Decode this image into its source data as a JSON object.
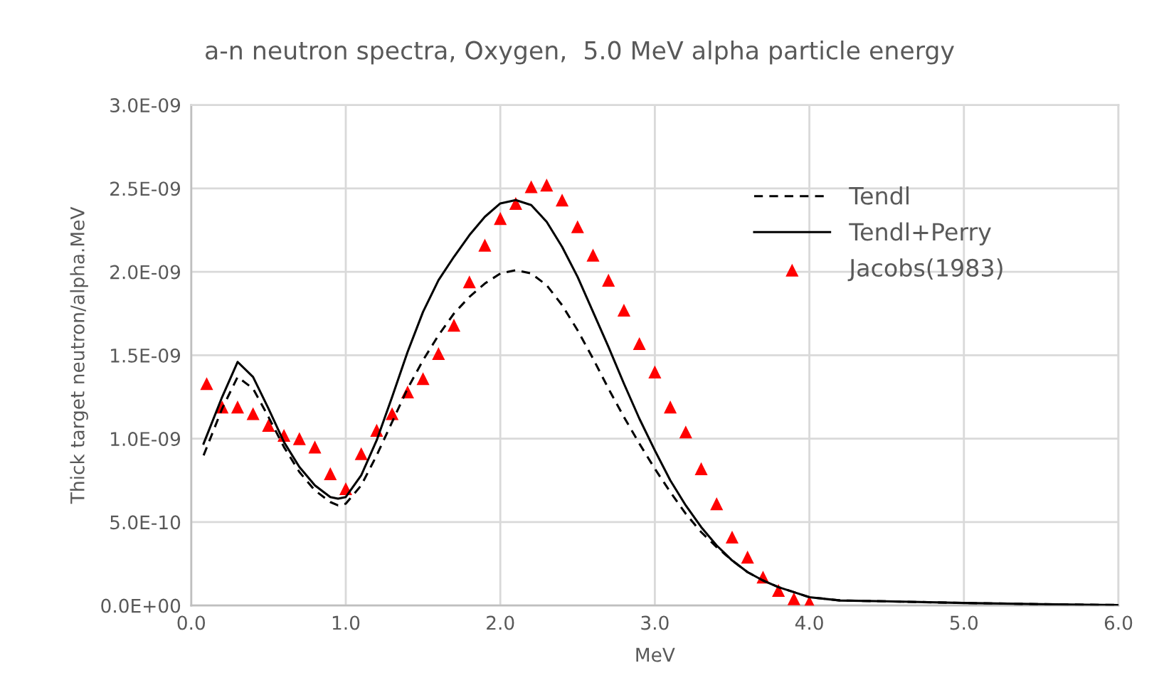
{
  "chart_data": {
    "type": "line",
    "title": "a-n neutron spectra, Oxygen,  5.0 MeV alpha particle energy",
    "xlabel": "MeV",
    "ylabel": "Thick target neutron/alpha.MeV",
    "xlim": [
      0,
      6
    ],
    "ylim": [
      0,
      3e-09
    ],
    "xticks": [
      {
        "value": 0,
        "label": "0.0"
      },
      {
        "value": 1,
        "label": "1.0"
      },
      {
        "value": 2,
        "label": "2.0"
      },
      {
        "value": 3,
        "label": "3.0"
      },
      {
        "value": 4,
        "label": "4.0"
      },
      {
        "value": 5,
        "label": "5.0"
      },
      {
        "value": 6,
        "label": "6.0"
      }
    ],
    "yticks": [
      {
        "value": 0,
        "label": "0.0E+00"
      },
      {
        "value": 5e-10,
        "label": "5.0E-10"
      },
      {
        "value": 1e-09,
        "label": "1.0E-09"
      },
      {
        "value": 1.5e-09,
        "label": "1.5E-09"
      },
      {
        "value": 2e-09,
        "label": "2.0E-09"
      },
      {
        "value": 2.5e-09,
        "label": "2.5E-09"
      },
      {
        "value": 3e-09,
        "label": "3.0E-09"
      }
    ],
    "grid": true,
    "legend": "top right",
    "series": [
      {
        "name": "Tendl",
        "line_style": "dashed",
        "marker": "none",
        "color": "#000000",
        "x": [
          0.08,
          0.2,
          0.3,
          0.4,
          0.5,
          0.6,
          0.7,
          0.8,
          0.9,
          0.95,
          1.0,
          1.1,
          1.2,
          1.3,
          1.4,
          1.5,
          1.6,
          1.7,
          1.8,
          1.9,
          2.0,
          2.1,
          2.2,
          2.3,
          2.4,
          2.5,
          2.6,
          2.7,
          2.8,
          2.9,
          3.0,
          3.1,
          3.2,
          3.3,
          3.4,
          3.5,
          3.6,
          3.7,
          3.8,
          3.9,
          4.0,
          4.2,
          4.5,
          5.0,
          5.5,
          6.0
        ],
        "values": [
          9e-10,
          1.18e-09,
          1.37e-09,
          1.3e-09,
          1.13e-09,
          9.5e-10,
          8e-10,
          6.9e-10,
          6.2e-10,
          6e-10,
          6.1e-10,
          7.2e-10,
          9e-10,
          1.1e-09,
          1.3e-09,
          1.47e-09,
          1.62e-09,
          1.75e-09,
          1.85e-09,
          1.93e-09,
          1.99e-09,
          2.01e-09,
          1.99e-09,
          1.92e-09,
          1.8e-09,
          1.65e-09,
          1.48e-09,
          1.3e-09,
          1.13e-09,
          9.7e-10,
          8.2e-10,
          6.8e-10,
          5.5e-10,
          4.4e-10,
          3.5e-10,
          2.7e-10,
          2e-10,
          1.5e-10,
          1.1e-10,
          8e-11,
          5e-11,
          3e-11,
          2.5e-11,
          1.5e-11,
          8e-12,
          3e-12
        ]
      },
      {
        "name": "Tendl+Perry",
        "line_style": "solid",
        "marker": "none",
        "color": "#000000",
        "x": [
          0.08,
          0.2,
          0.3,
          0.4,
          0.5,
          0.6,
          0.7,
          0.8,
          0.9,
          0.95,
          1.0,
          1.1,
          1.2,
          1.3,
          1.4,
          1.5,
          1.6,
          1.7,
          1.8,
          1.9,
          2.0,
          2.1,
          2.2,
          2.3,
          2.4,
          2.5,
          2.6,
          2.7,
          2.8,
          2.9,
          3.0,
          3.1,
          3.2,
          3.3,
          3.4,
          3.5,
          3.6,
          3.7,
          3.8,
          3.9,
          4.0,
          4.2,
          4.5,
          5.0,
          5.5,
          6.0
        ],
        "values": [
          9.7e-10,
          1.25e-09,
          1.46e-09,
          1.37e-09,
          1.18e-09,
          9.8e-10,
          8.3e-10,
          7.2e-10,
          6.5e-10,
          6.4e-10,
          6.5e-10,
          7.8e-10,
          9.9e-10,
          1.25e-09,
          1.52e-09,
          1.76e-09,
          1.95e-09,
          2.09e-09,
          2.22e-09,
          2.33e-09,
          2.41e-09,
          2.43e-09,
          2.4e-09,
          2.3e-09,
          2.15e-09,
          1.97e-09,
          1.76e-09,
          1.55e-09,
          1.33e-09,
          1.12e-09,
          9.3e-10,
          7.5e-10,
          6e-10,
          4.7e-10,
          3.6e-10,
          2.7e-10,
          2e-10,
          1.5e-10,
          1.1e-10,
          8e-11,
          5e-11,
          3e-11,
          2.5e-11,
          1.5e-11,
          8e-12,
          3e-12
        ]
      },
      {
        "name": "Jacobs(1983)",
        "type": "scatter",
        "marker": "triangle",
        "color": "#ff0000",
        "x": [
          0.1,
          0.2,
          0.3,
          0.4,
          0.5,
          0.6,
          0.7,
          0.8,
          0.9,
          1.0,
          1.1,
          1.2,
          1.3,
          1.4,
          1.5,
          1.6,
          1.7,
          1.8,
          1.9,
          2.0,
          2.1,
          2.2,
          2.3,
          2.4,
          2.5,
          2.6,
          2.7,
          2.8,
          2.9,
          3.0,
          3.1,
          3.2,
          3.3,
          3.4,
          3.5,
          3.6,
          3.7,
          3.8,
          3.9,
          4.0
        ],
        "values": [
          1.33e-09,
          1.19e-09,
          1.19e-09,
          1.15e-09,
          1.08e-09,
          1.02e-09,
          1e-09,
          9.5e-10,
          7.9e-10,
          7e-10,
          9.1e-10,
          1.05e-09,
          1.15e-09,
          1.28e-09,
          1.36e-09,
          1.51e-09,
          1.68e-09,
          1.94e-09,
          2.16e-09,
          2.32e-09,
          2.41e-09,
          2.51e-09,
          2.52e-09,
          2.43e-09,
          2.27e-09,
          2.1e-09,
          1.95e-09,
          1.77e-09,
          1.57e-09,
          1.4e-09,
          1.19e-09,
          1.04e-09,
          8.2e-10,
          6.1e-10,
          4.1e-10,
          2.9e-10,
          1.7e-10,
          9e-11,
          4e-11,
          2e-11
        ]
      }
    ]
  }
}
